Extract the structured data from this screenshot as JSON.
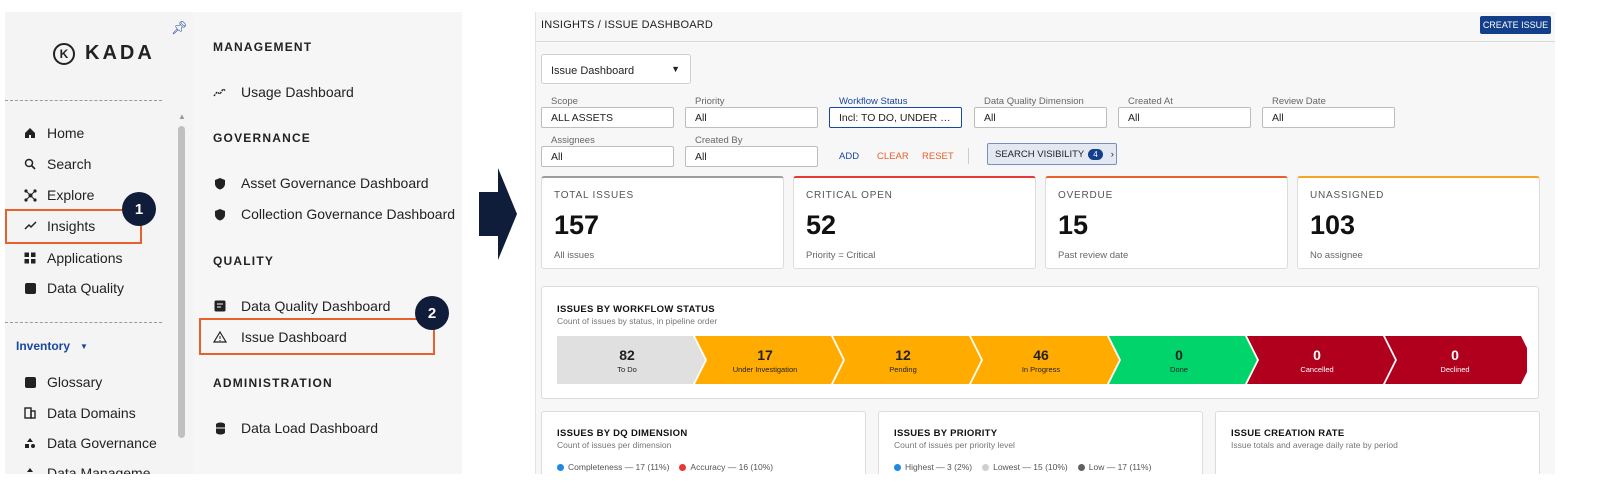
{
  "leftnav": {
    "logo_text": "KADA",
    "items": [
      {
        "label": "Home",
        "icon": "home-icon"
      },
      {
        "label": "Search",
        "icon": "search-icon"
      },
      {
        "label": "Explore",
        "icon": "explore-icon"
      },
      {
        "label": "Insights",
        "icon": "insights-icon"
      },
      {
        "label": "Applications",
        "icon": "applications-icon"
      },
      {
        "label": "Data Quality",
        "icon": "data-quality-icon"
      }
    ],
    "inventory_label": "Inventory",
    "inventory_items": [
      {
        "label": "Glossary",
        "icon": "glossary-icon"
      },
      {
        "label": "Data Domains",
        "icon": "data-domains-icon"
      },
      {
        "label": "Data Governance",
        "icon": "data-governance-icon"
      },
      {
        "label": "Data Manageme",
        "icon": "data-management-icon"
      }
    ]
  },
  "callouts": {
    "step1": "1",
    "step2": "2",
    "highlight_color": "#e8602c"
  },
  "submenu": {
    "management": "MANAGEMENT",
    "usage": "Usage Dashboard",
    "governance": "GOVERNANCE",
    "asset_gov": "Asset Governance Dashboard",
    "collection_gov": "Collection Governance Dashboard",
    "quality": "QUALITY",
    "dq_dashboard": "Data Quality Dashboard",
    "issue_dashboard": "Issue Dashboard",
    "administration": "ADMINISTRATION",
    "data_load": "Data Load Dashboard"
  },
  "dashboard": {
    "breadcrumb": "INSIGHTS / ISSUE DASHBOARD",
    "create_button": "CREATE ISSUE",
    "view_select": "Issue Dashboard",
    "filters": [
      {
        "label": "Scope",
        "value": "ALL ASSETS"
      },
      {
        "label": "Priority",
        "value": "All"
      },
      {
        "label": "Workflow Status",
        "value": "Incl: TO DO, UNDER INVESTIGATION, PENDING"
      },
      {
        "label": "Data Quality Dimension",
        "value": "All"
      },
      {
        "label": "Created At",
        "value": "All"
      },
      {
        "label": "Review Date",
        "value": "All"
      },
      {
        "label": "Assignees",
        "value": "All"
      },
      {
        "label": "Created By",
        "value": "All"
      }
    ],
    "actions": {
      "add": "ADD",
      "clear": "CLEAR",
      "reset": "RESET"
    },
    "search_visibility": {
      "label": "SEARCH VISIBILITY",
      "count": "4"
    },
    "kpis": [
      {
        "label": "TOTAL ISSUES",
        "value": "157",
        "sub": "All issues",
        "color": "#9e9e9e"
      },
      {
        "label": "CRITICAL OPEN",
        "value": "52",
        "sub": "Priority = Critical",
        "color": "#e53935"
      },
      {
        "label": "OVERDUE",
        "value": "15",
        "sub": "Past review date",
        "color": "#e8602c"
      },
      {
        "label": "UNASSIGNED",
        "value": "103",
        "sub": "No assignee",
        "color": "#f5a623"
      }
    ],
    "workflow_card": {
      "title": "ISSUES BY WORKFLOW STATUS",
      "subtitle": "Count of issues by status, in pipeline order",
      "stages": [
        {
          "value": "82",
          "label": "To Do",
          "bg": "#e0e0e0",
          "fg": "#222222"
        },
        {
          "value": "17",
          "label": "Under Investigation",
          "bg": "#ffab00",
          "fg": "#222222"
        },
        {
          "value": "12",
          "label": "Pending",
          "bg": "#ffab00",
          "fg": "#222222"
        },
        {
          "value": "46",
          "label": "In Progress",
          "bg": "#ffab00",
          "fg": "#222222"
        },
        {
          "value": "0",
          "label": "Done",
          "bg": "#00d46a",
          "fg": "#222222"
        },
        {
          "value": "0",
          "label": "Cancelled",
          "bg": "#b0001e",
          "fg": "#ffffff"
        },
        {
          "value": "0",
          "label": "Declined",
          "bg": "#b0001e",
          "fg": "#ffffff"
        }
      ]
    },
    "dq_card": {
      "title": "ISSUES BY DQ DIMENSION",
      "subtitle": "Count of issues per dimension",
      "legend": [
        {
          "label": "Completeness — 17 (11%)",
          "color": "#1e88e5"
        },
        {
          "label": "Accuracy — 16 (10%)",
          "color": "#e53935"
        }
      ]
    },
    "priority_card": {
      "title": "ISSUES BY PRIORITY",
      "subtitle": "Count of issues per priority level",
      "legend": [
        {
          "label": "Highest — 3 (2%)",
          "color": "#1e88e5"
        },
        {
          "label": "Lowest — 15 (10%)",
          "color": "#cfcfcf"
        },
        {
          "label": "Low — 17 (11%)",
          "color": "#616161"
        }
      ]
    },
    "rate_card": {
      "title": "ISSUE CREATION RATE",
      "subtitle": "Issue totals and average daily rate by period"
    }
  }
}
